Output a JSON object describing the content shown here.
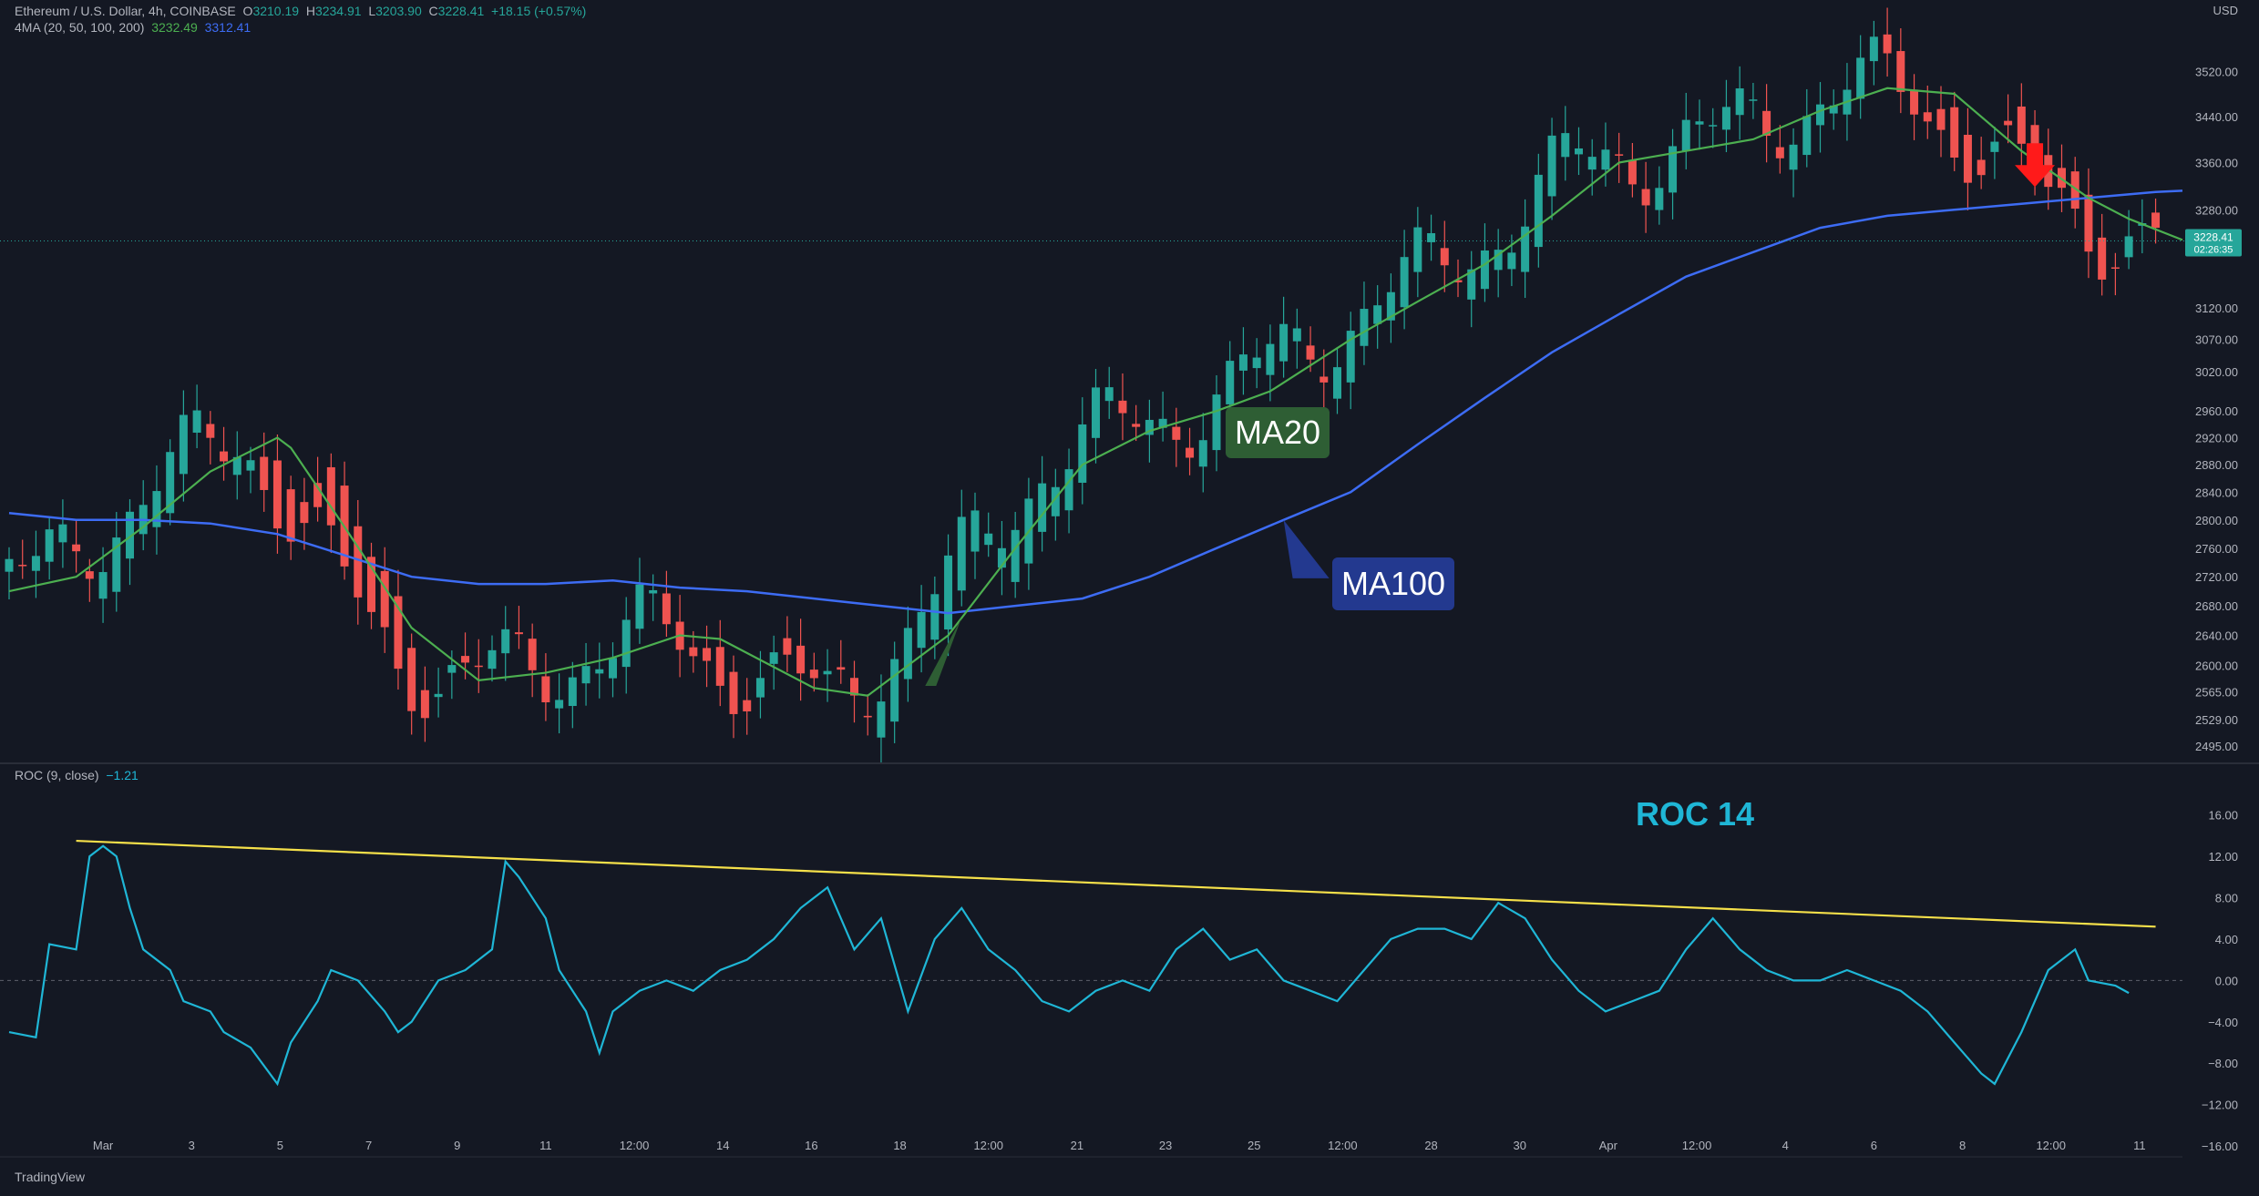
{
  "header": {
    "symbol": "Ethereum / U.S. Dollar, 4h, COINBASE",
    "o_label": "O",
    "o_value": "3210.19",
    "h_label": "H",
    "h_value": "3234.91",
    "l_label": "L",
    "l_value": "3203.90",
    "c_label": "C",
    "c_value": "3228.41",
    "change": "+18.15 (+0.57%)",
    "ma_label": "4MA (20, 50, 100, 200)",
    "ma20_value": "3232.49",
    "ma100_value": "3312.41",
    "roc_label": "ROC (9, close)",
    "roc_value": "−1.21"
  },
  "currency": "USD",
  "brand": "TradingView",
  "colors": {
    "background": "#141823",
    "up": "#26a69a",
    "down": "#ef5350",
    "ma20": "#4caf50",
    "ma100": "#3d6cf4",
    "roc": "#1fb6d6",
    "trendline": "#f5e04a",
    "annotation_arrow": "#ff1a1a"
  },
  "chart_data": [
    {
      "type": "candlestick",
      "title": "Ethereum / U.S. Dollar, 4h, COINBASE",
      "ylim": [
        2480,
        3600
      ],
      "y_scale": "log",
      "y_ticks": [
        "3520.00",
        "3440.00",
        "3360.00",
        "3280.00",
        "3120.00",
        "3070.00",
        "3020.00",
        "2960.00",
        "2920.00",
        "2880.00",
        "2840.00",
        "2800.00",
        "2760.00",
        "2720.00",
        "2680.00",
        "2640.00",
        "2600.00",
        "2565.00",
        "2529.00",
        "2495.00"
      ],
      "x_ticks": [
        "Mar",
        "3",
        "5",
        "7",
        "9",
        "11",
        "12:00",
        "14",
        "16",
        "18",
        "12:00",
        "21",
        "23",
        "25",
        "12:00",
        "28",
        "30",
        "Apr",
        "12:00",
        "4",
        "6",
        "8",
        "12:00",
        "11"
      ],
      "last_price": {
        "value": "3228.41",
        "countdown": "02:26:35"
      },
      "series": [
        {
          "name": "MA20",
          "points": [
            [
              0,
              2700
            ],
            [
              5,
              2720
            ],
            [
              10,
              2790
            ],
            [
              15,
              2870
            ],
            [
              17,
              2890
            ],
            [
              20,
              2920
            ],
            [
              21,
              2905
            ],
            [
              25,
              2790
            ],
            [
              30,
              2650
            ],
            [
              35,
              2580
            ],
            [
              40,
              2590
            ],
            [
              45,
              2610
            ],
            [
              50,
              2640
            ],
            [
              53,
              2635
            ],
            [
              60,
              2570
            ],
            [
              64,
              2560
            ],
            [
              70,
              2640
            ],
            [
              75,
              2760
            ],
            [
              80,
              2880
            ],
            [
              85,
              2930
            ],
            [
              90,
              2960
            ],
            [
              94,
              2990
            ],
            [
              100,
              3070
            ],
            [
              105,
              3130
            ],
            [
              110,
              3190
            ],
            [
              115,
              3270
            ],
            [
              120,
              3360
            ],
            [
              125,
              3380
            ],
            [
              130,
              3400
            ],
            [
              135,
              3450
            ],
            [
              140,
              3490
            ],
            [
              145,
              3480
            ],
            [
              150,
              3380
            ],
            [
              155,
              3300
            ],
            [
              158,
              3265
            ],
            [
              162,
              3230
            ]
          ]
        },
        {
          "name": "MA100",
          "points": [
            [
              0,
              2810
            ],
            [
              5,
              2800
            ],
            [
              10,
              2800
            ],
            [
              15,
              2795
            ],
            [
              20,
              2780
            ],
            [
              25,
              2750
            ],
            [
              30,
              2720
            ],
            [
              35,
              2710
            ],
            [
              40,
              2710
            ],
            [
              45,
              2715
            ],
            [
              50,
              2705
            ],
            [
              55,
              2700
            ],
            [
              60,
              2690
            ],
            [
              65,
              2680
            ],
            [
              70,
              2670
            ],
            [
              75,
              2680
            ],
            [
              80,
              2690
            ],
            [
              85,
              2720
            ],
            [
              90,
              2760
            ],
            [
              95,
              2800
            ],
            [
              100,
              2840
            ],
            [
              105,
              2910
            ],
            [
              110,
              2980
            ],
            [
              115,
              3050
            ],
            [
              120,
              3110
            ],
            [
              125,
              3170
            ],
            [
              130,
              3210
            ],
            [
              135,
              3250
            ],
            [
              140,
              3270
            ],
            [
              145,
              3280
            ],
            [
              150,
              3290
            ],
            [
              155,
              3300
            ],
            [
              160,
              3310
            ],
            [
              162,
              3312
            ]
          ]
        }
      ],
      "annotations": [
        "MA20",
        "MA100"
      ]
    },
    {
      "type": "line",
      "title": "ROC (9, close)",
      "ylim": [
        -16,
        18
      ],
      "y_ticks": [
        "16.00",
        "12.00",
        "8.00",
        "4.00",
        "0.00",
        "−4.00",
        "−8.00",
        "−12.00",
        "−16.00"
      ],
      "series": [
        {
          "name": "ROC",
          "points": [
            [
              0,
              -5
            ],
            [
              2,
              -5.5
            ],
            [
              3,
              3.5
            ],
            [
              5,
              3
            ],
            [
              6,
              12
            ],
            [
              7,
              13
            ],
            [
              8,
              12
            ],
            [
              9,
              7
            ],
            [
              10,
              3
            ],
            [
              12,
              1
            ],
            [
              13,
              -2
            ],
            [
              15,
              -3
            ],
            [
              16,
              -5
            ],
            [
              18,
              -6.5
            ],
            [
              20,
              -10
            ],
            [
              21,
              -6
            ],
            [
              23,
              -2
            ],
            [
              24,
              1
            ],
            [
              26,
              0
            ],
            [
              28,
              -3
            ],
            [
              29,
              -5
            ],
            [
              30,
              -4
            ],
            [
              31,
              -2
            ],
            [
              32,
              0
            ],
            [
              34,
              1
            ],
            [
              36,
              3
            ],
            [
              37,
              11.5
            ],
            [
              38,
              10
            ],
            [
              40,
              6
            ],
            [
              41,
              1
            ],
            [
              43,
              -3
            ],
            [
              44,
              -7
            ],
            [
              45,
              -3
            ],
            [
              47,
              -1
            ],
            [
              49,
              0
            ],
            [
              51,
              -1
            ],
            [
              53,
              1
            ],
            [
              55,
              2
            ],
            [
              57,
              4
            ],
            [
              59,
              7
            ],
            [
              61,
              9
            ],
            [
              63,
              3
            ],
            [
              65,
              6
            ],
            [
              67,
              -3
            ],
            [
              69,
              4
            ],
            [
              71,
              7
            ],
            [
              73,
              3
            ],
            [
              75,
              1
            ],
            [
              77,
              -2
            ],
            [
              79,
              -3
            ],
            [
              81,
              -1
            ],
            [
              83,
              0
            ],
            [
              85,
              -1
            ],
            [
              87,
              3
            ],
            [
              89,
              5
            ],
            [
              91,
              2
            ],
            [
              93,
              3
            ],
            [
              95,
              0
            ],
            [
              97,
              -1
            ],
            [
              99,
              -2
            ],
            [
              101,
              1
            ],
            [
              103,
              4
            ],
            [
              105,
              5
            ],
            [
              107,
              5
            ],
            [
              109,
              4
            ],
            [
              111,
              7.5
            ],
            [
              113,
              6
            ],
            [
              115,
              2
            ],
            [
              117,
              -1
            ],
            [
              119,
              -3
            ],
            [
              121,
              -2
            ],
            [
              123,
              -1
            ],
            [
              125,
              3
            ],
            [
              127,
              6
            ],
            [
              129,
              3
            ],
            [
              131,
              1
            ],
            [
              133,
              0
            ],
            [
              135,
              0
            ],
            [
              137,
              1
            ],
            [
              139,
              0
            ],
            [
              141,
              -1
            ],
            [
              143,
              -3
            ],
            [
              145,
              -6
            ],
            [
              147,
              -9
            ],
            [
              148,
              -10
            ],
            [
              150,
              -5
            ],
            [
              152,
              1
            ],
            [
              154,
              3
            ],
            [
              155,
              0
            ],
            [
              157,
              -0.5
            ],
            [
              158,
              -1.21
            ]
          ]
        },
        {
          "name": "Trendline",
          "points": [
            [
              5,
              13.5
            ],
            [
              160,
              5.2
            ]
          ]
        }
      ],
      "annotations": [
        "ROC 14"
      ]
    }
  ]
}
